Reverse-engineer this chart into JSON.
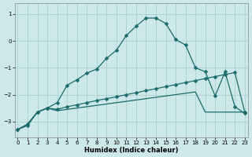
{
  "xlabel": "Humidex (Indice chaleur)",
  "bg_color": "#cce8e8",
  "grid_color": "#aacfcf",
  "line_color": "#1a6b6b",
  "x_ticks": [
    0,
    1,
    2,
    3,
    4,
    5,
    6,
    7,
    8,
    9,
    10,
    11,
    12,
    13,
    14,
    15,
    16,
    17,
    18,
    19,
    20,
    21,
    22,
    23
  ],
  "y_ticks": [
    1,
    0,
    -1,
    -2,
    -3
  ],
  "ylim": [
    -3.6,
    1.4
  ],
  "xlim": [
    -0.3,
    23.3
  ],
  "curve1_x": [
    0,
    1,
    2,
    3,
    4,
    5,
    6,
    7,
    8,
    9,
    10,
    11,
    12,
    13,
    14,
    15,
    16,
    17,
    18,
    19,
    20,
    21,
    22,
    23
  ],
  "curve1_y": [
    -3.3,
    -3.15,
    -2.65,
    -2.5,
    -2.3,
    -1.65,
    -1.45,
    -1.2,
    -1.05,
    -0.65,
    -0.35,
    0.2,
    0.55,
    0.85,
    0.85,
    0.65,
    0.05,
    -0.15,
    -1.0,
    -1.15,
    -2.05,
    -1.15,
    -2.45,
    -2.7
  ],
  "curve2_x": [
    0,
    1,
    2,
    3,
    4,
    5,
    6,
    7,
    8,
    9,
    10,
    11,
    12,
    13,
    14,
    15,
    16,
    17,
    18,
    19,
    20,
    21,
    22,
    23
  ],
  "curve2_y": [
    -3.3,
    -3.1,
    -2.65,
    -2.5,
    -2.55,
    -2.45,
    -2.38,
    -2.3,
    -2.22,
    -2.15,
    -2.08,
    -2.0,
    -1.93,
    -1.85,
    -1.78,
    -1.7,
    -1.63,
    -1.55,
    -1.48,
    -1.4,
    -1.33,
    -1.25,
    -1.18,
    -2.65
  ],
  "curve3_x": [
    0,
    1,
    2,
    3,
    4,
    5,
    6,
    7,
    8,
    9,
    10,
    11,
    12,
    13,
    14,
    15,
    16,
    17,
    18,
    19,
    20,
    21,
    22,
    23
  ],
  "curve3_y": [
    -3.3,
    -3.1,
    -2.65,
    -2.5,
    -2.6,
    -2.55,
    -2.5,
    -2.45,
    -2.4,
    -2.35,
    -2.3,
    -2.25,
    -2.2,
    -2.15,
    -2.1,
    -2.05,
    -2.0,
    -1.95,
    -1.9,
    -2.65,
    -2.65,
    -2.65,
    -2.65,
    -2.65
  ]
}
